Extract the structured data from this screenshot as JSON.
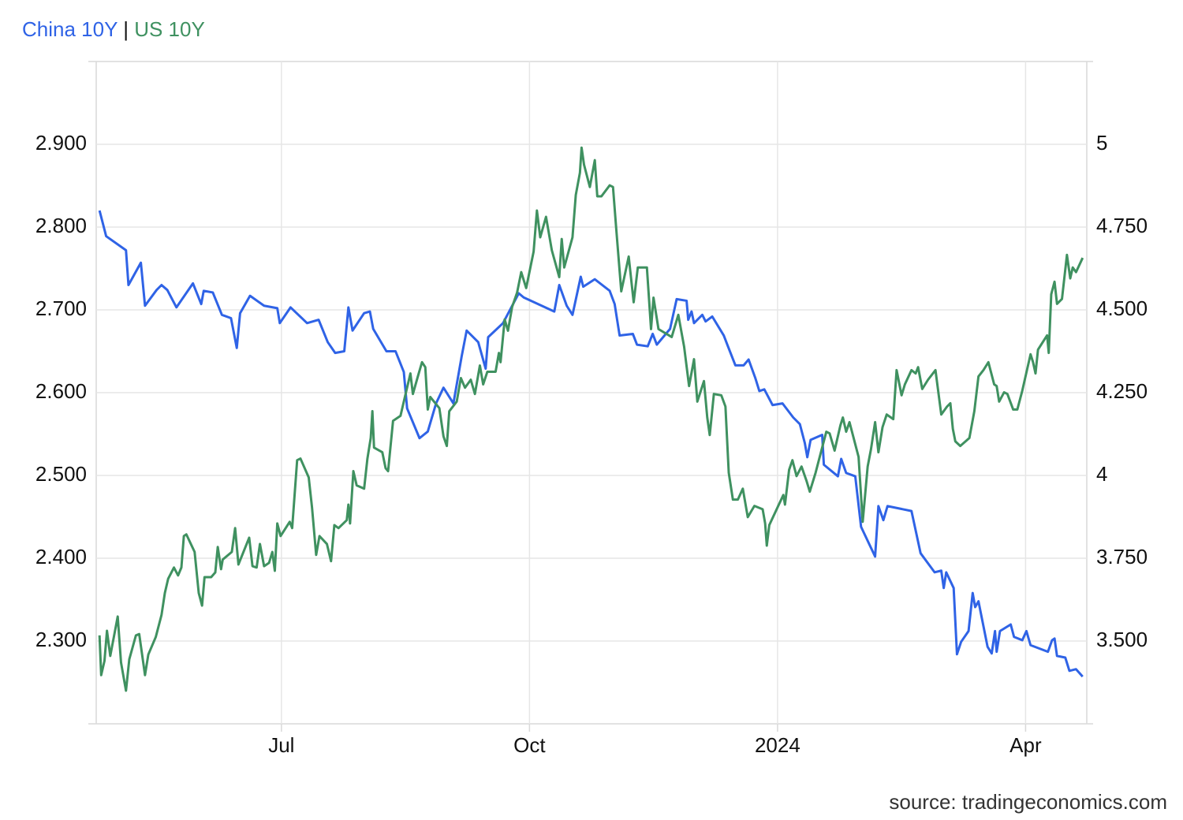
{
  "chart_data": {
    "type": "line",
    "legend_separator": "|",
    "source": "source: tradingeconomics.com",
    "xlim": [
      4.76,
      16.74
    ],
    "xticks": [
      {
        "value": 7,
        "label": "Jul"
      },
      {
        "value": 10,
        "label": "Oct"
      },
      {
        "value": 13,
        "label": "2024"
      },
      {
        "value": 16,
        "label": "Apr"
      }
    ],
    "ylim": [
      2.2,
      3.0
    ],
    "yticks": [
      {
        "value": 2.3,
        "label": "2.300"
      },
      {
        "value": 2.4,
        "label": "2.400"
      },
      {
        "value": 2.5,
        "label": "2.500"
      },
      {
        "value": 2.6,
        "label": "2.600"
      },
      {
        "value": 2.7,
        "label": "2.700"
      },
      {
        "value": 2.8,
        "label": "2.800"
      },
      {
        "value": 2.9,
        "label": "2.900"
      }
    ],
    "y2lim": [
      3.25,
      5.25
    ],
    "y2ticks": [
      {
        "value": 3.5,
        "label": "3.500"
      },
      {
        "value": 3.75,
        "label": "3.750"
      },
      4,
      {
        "value": 4.25,
        "label": "4.250"
      },
      {
        "value": 4.5,
        "label": "4.500"
      },
      {
        "value": 4.75,
        "label": "4.750"
      },
      5
    ],
    "grid": true,
    "series": [
      {
        "name": "China 10Y",
        "color": "#2f63e6",
        "x": [
          4.8,
          4.88,
          5.12,
          5.15,
          5.3,
          5.35,
          5.49,
          5.55,
          5.62,
          5.73,
          5.93,
          6.03,
          6.06,
          6.17,
          6.28,
          6.39,
          6.46,
          6.5,
          6.62,
          6.79,
          6.95,
          6.98,
          7.11,
          7.31,
          7.45,
          7.56,
          7.65,
          7.76,
          7.81,
          7.86,
          8.0,
          8.07,
          8.11,
          8.27,
          8.38,
          8.48,
          8.52,
          8.67,
          8.77,
          8.87,
          8.96,
          9.08,
          9.18,
          9.24,
          9.38,
          9.47,
          9.5,
          9.68,
          9.87,
          9.93,
          10.3,
          10.36,
          10.45,
          10.52,
          10.62,
          10.65,
          10.79,
          10.97,
          11.03,
          11.09,
          11.25,
          11.3,
          11.43,
          11.49,
          11.54,
          11.7,
          11.78,
          11.9,
          11.92,
          11.96,
          11.99,
          12.09,
          12.13,
          12.21,
          12.35,
          12.4,
          12.49,
          12.59,
          12.65,
          12.73,
          12.78,
          12.84,
          12.94,
          13.06,
          13.19,
          13.27,
          13.33,
          13.36,
          13.4,
          13.54,
          13.56,
          13.73,
          13.77,
          13.83,
          13.94,
          14.01,
          14.18,
          14.22,
          14.28,
          14.33,
          14.62,
          14.73,
          14.9,
          14.98,
          15.01,
          15.04,
          15.13,
          15.17,
          15.22,
          15.31,
          15.36,
          15.39,
          15.43,
          15.54,
          15.59,
          15.63,
          15.65,
          15.69,
          15.82,
          15.86,
          15.96,
          16.01,
          16.06,
          16.27,
          16.32,
          16.35,
          16.38,
          16.48,
          16.53,
          16.61,
          16.69
        ],
        "values": [
          2.82,
          2.789,
          2.772,
          2.73,
          2.757,
          2.705,
          2.724,
          2.73,
          2.724,
          2.703,
          2.732,
          2.707,
          2.723,
          2.721,
          2.694,
          2.69,
          2.654,
          2.696,
          2.717,
          2.705,
          2.702,
          2.684,
          2.703,
          2.684,
          2.688,
          2.661,
          2.648,
          2.65,
          2.703,
          2.675,
          2.696,
          2.698,
          2.677,
          2.65,
          2.65,
          2.625,
          2.581,
          2.545,
          2.553,
          2.587,
          2.606,
          2.587,
          2.644,
          2.675,
          2.661,
          2.629,
          2.667,
          2.684,
          2.72,
          2.715,
          2.698,
          2.73,
          2.705,
          2.694,
          2.74,
          2.728,
          2.737,
          2.723,
          2.707,
          2.669,
          2.671,
          2.658,
          2.656,
          2.671,
          2.658,
          2.677,
          2.713,
          2.711,
          2.688,
          2.698,
          2.684,
          2.694,
          2.686,
          2.692,
          2.669,
          2.656,
          2.633,
          2.633,
          2.64,
          2.618,
          2.602,
          2.604,
          2.585,
          2.587,
          2.57,
          2.562,
          2.539,
          2.522,
          2.543,
          2.549,
          2.513,
          2.499,
          2.52,
          2.503,
          2.499,
          2.438,
          2.402,
          2.463,
          2.446,
          2.463,
          2.457,
          2.406,
          2.383,
          2.385,
          2.364,
          2.383,
          2.364,
          2.284,
          2.299,
          2.312,
          2.358,
          2.341,
          2.348,
          2.293,
          2.285,
          2.312,
          2.287,
          2.312,
          2.32,
          2.305,
          2.301,
          2.312,
          2.295,
          2.287,
          2.301,
          2.303,
          2.282,
          2.28,
          2.264,
          2.266,
          2.257
        ]
      },
      {
        "name": "US 10Y",
        "color": "#3f9160",
        "axis": "y2",
        "x": [
          4.8,
          4.82,
          4.86,
          4.89,
          4.93,
          5.02,
          5.06,
          5.12,
          5.16,
          5.24,
          5.28,
          5.35,
          5.39,
          5.48,
          5.55,
          5.59,
          5.63,
          5.7,
          5.75,
          5.79,
          5.82,
          5.85,
          5.95,
          6.0,
          6.04,
          6.07,
          6.15,
          6.2,
          6.23,
          6.27,
          6.29,
          6.4,
          6.44,
          6.48,
          6.61,
          6.65,
          6.7,
          6.74,
          6.79,
          6.85,
          6.89,
          6.92,
          6.95,
          6.99,
          7.1,
          7.13,
          7.19,
          7.23,
          7.33,
          7.37,
          7.42,
          7.46,
          7.55,
          7.6,
          7.64,
          7.69,
          7.79,
          7.81,
          7.83,
          7.87,
          7.91,
          8.0,
          8.04,
          8.08,
          8.1,
          8.12,
          8.22,
          8.26,
          8.29,
          8.35,
          8.44,
          8.48,
          8.56,
          8.59,
          8.65,
          8.7,
          8.74,
          8.77,
          8.8,
          8.91,
          8.96,
          9.0,
          9.03,
          9.12,
          9.17,
          9.22,
          9.29,
          9.34,
          9.4,
          9.44,
          9.49,
          9.59,
          9.63,
          9.65,
          9.7,
          9.74,
          9.79,
          9.85,
          9.9,
          9.96,
          10.05,
          10.09,
          10.13,
          10.2,
          10.27,
          10.36,
          10.39,
          10.42,
          10.52,
          10.56,
          10.61,
          10.63,
          10.66,
          10.73,
          10.79,
          10.82,
          10.87,
          10.97,
          11.01,
          11.05,
          11.11,
          11.2,
          11.26,
          11.31,
          11.42,
          11.47,
          11.5,
          11.56,
          11.72,
          11.8,
          11.87,
          11.93,
          11.99,
          12.03,
          12.11,
          12.15,
          12.18,
          12.23,
          12.32,
          12.37,
          12.41,
          12.46,
          12.52,
          12.58,
          12.64,
          12.72,
          12.82,
          12.85,
          12.87,
          12.9,
          13.07,
          13.09,
          13.14,
          13.18,
          13.23,
          13.29,
          13.35,
          13.39,
          13.46,
          13.53,
          13.59,
          13.63,
          13.69,
          13.76,
          13.79,
          13.83,
          13.87,
          13.98,
          14.03,
          14.09,
          14.13,
          14.18,
          14.22,
          14.27,
          14.32,
          14.4,
          14.44,
          14.5,
          14.54,
          14.62,
          14.67,
          14.7,
          14.75,
          14.82,
          14.91,
          14.98,
          15.05,
          15.09,
          15.12,
          15.15,
          15.21,
          15.32,
          15.38,
          15.43,
          15.49,
          15.55,
          15.62,
          15.65,
          15.68,
          15.74,
          15.78,
          15.85,
          15.9,
          15.96,
          16.06,
          16.09,
          16.12,
          16.15,
          16.26,
          16.28,
          16.31,
          16.35,
          16.38,
          16.44,
          16.5,
          16.54,
          16.57,
          16.61,
          16.69
        ],
        "values": [
          3.517,
          3.397,
          3.44,
          3.531,
          3.455,
          3.574,
          3.435,
          3.35,
          3.445,
          3.517,
          3.521,
          3.397,
          3.459,
          3.512,
          3.579,
          3.645,
          3.688,
          3.722,
          3.698,
          3.722,
          3.817,
          3.822,
          3.769,
          3.645,
          3.607,
          3.693,
          3.693,
          3.707,
          3.784,
          3.717,
          3.746,
          3.769,
          3.841,
          3.731,
          3.812,
          3.726,
          3.722,
          3.793,
          3.726,
          3.736,
          3.769,
          3.712,
          3.855,
          3.817,
          3.86,
          3.841,
          4.046,
          4.051,
          3.994,
          3.903,
          3.76,
          3.817,
          3.793,
          3.741,
          3.85,
          3.841,
          3.865,
          3.912,
          3.855,
          4.013,
          3.97,
          3.96,
          4.051,
          4.113,
          4.194,
          4.084,
          4.07,
          4.022,
          4.013,
          4.165,
          4.18,
          4.223,
          4.308,
          4.246,
          4.299,
          4.342,
          4.327,
          4.199,
          4.237,
          4.203,
          4.118,
          4.089,
          4.194,
          4.223,
          4.294,
          4.265,
          4.289,
          4.246,
          4.332,
          4.275,
          4.313,
          4.313,
          4.37,
          4.342,
          4.471,
          4.437,
          4.509,
          4.552,
          4.614,
          4.566,
          4.676,
          4.8,
          4.719,
          4.781,
          4.68,
          4.599,
          4.714,
          4.628,
          4.719,
          4.847,
          4.914,
          4.99,
          4.938,
          4.871,
          4.952,
          4.843,
          4.843,
          4.876,
          4.871,
          4.742,
          4.556,
          4.661,
          4.523,
          4.628,
          4.628,
          4.442,
          4.537,
          4.442,
          4.418,
          4.485,
          4.389,
          4.27,
          4.351,
          4.223,
          4.285,
          4.175,
          4.122,
          4.246,
          4.242,
          4.208,
          4.008,
          3.927,
          3.927,
          3.96,
          3.874,
          3.908,
          3.898,
          3.855,
          3.788,
          3.85,
          3.941,
          3.912,
          4.017,
          4.046,
          3.998,
          4.027,
          3.984,
          3.951,
          4.008,
          4.075,
          4.132,
          4.127,
          4.075,
          4.151,
          4.175,
          4.132,
          4.161,
          4.056,
          3.86,
          4.027,
          4.079,
          4.161,
          4.07,
          4.146,
          4.184,
          4.17,
          4.318,
          4.242,
          4.275,
          4.318,
          4.308,
          4.327,
          4.261,
          4.289,
          4.318,
          4.184,
          4.208,
          4.218,
          4.141,
          4.103,
          4.089,
          4.113,
          4.194,
          4.299,
          4.318,
          4.342,
          4.275,
          4.27,
          4.223,
          4.251,
          4.246,
          4.199,
          4.199,
          4.256,
          4.366,
          4.342,
          4.308,
          4.38,
          4.423,
          4.37,
          4.547,
          4.585,
          4.518,
          4.533,
          4.666,
          4.595,
          4.628,
          4.614,
          4.657
        ]
      }
    ]
  }
}
